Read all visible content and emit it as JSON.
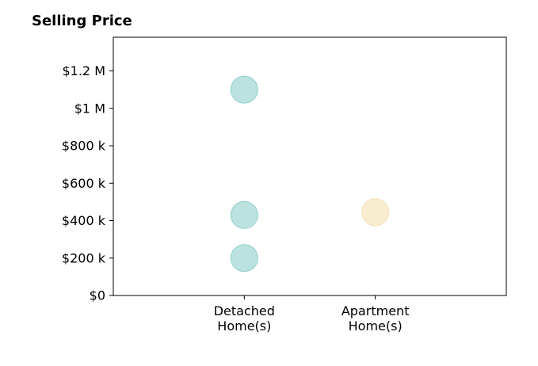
{
  "chart_data": {
    "type": "scatter",
    "title": "Selling Price",
    "xlabel": "",
    "ylabel": "",
    "categories": [
      {
        "lines": [
          "Detached",
          "Home(s)"
        ]
      },
      {
        "lines": [
          "Apartment",
          "Home(s)"
        ]
      }
    ],
    "xlim": [
      0,
      3
    ],
    "ylim": [
      0,
      1380000
    ],
    "y_ticks": [
      {
        "value": 0,
        "label": "$0"
      },
      {
        "value": 200000,
        "label": "$200 k"
      },
      {
        "value": 400000,
        "label": "$400 k"
      },
      {
        "value": 600000,
        "label": "$600 k"
      },
      {
        "value": 800000,
        "label": "$800 k"
      },
      {
        "value": 1000000,
        "label": "$1 M"
      },
      {
        "value": 1200000,
        "label": "$1.2 M"
      }
    ],
    "grid": false,
    "series": [
      {
        "color": "#8fcfc9",
        "points": [
          {
            "x": 1,
            "y": 1100000
          },
          {
            "x": 1,
            "y": 430000
          },
          {
            "x": 1,
            "y": 200000
          }
        ]
      },
      {
        "color": "#f3dfb3",
        "points": [
          {
            "x": 2,
            "y": 445000
          }
        ]
      }
    ]
  }
}
